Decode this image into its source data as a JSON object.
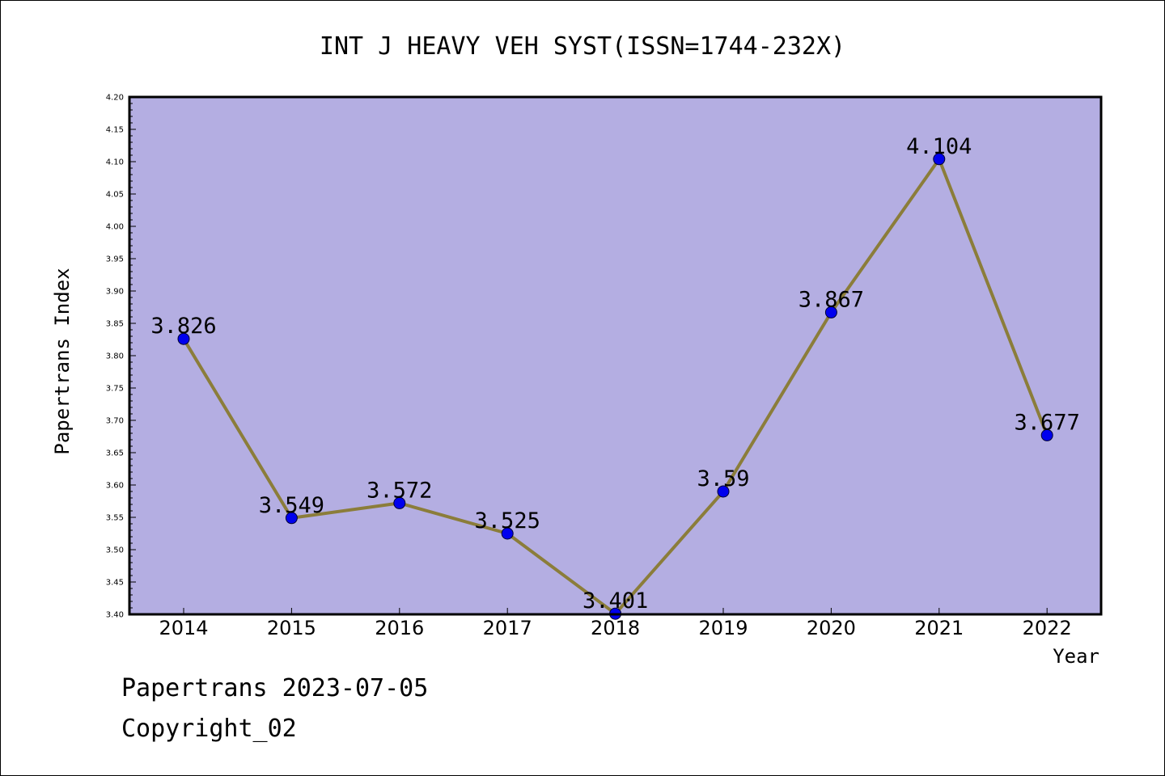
{
  "chart_data": {
    "type": "line",
    "title": "INT J HEAVY VEH SYST(ISSN=1744-232X)",
    "xlabel": "Year",
    "ylabel": "Papertrans Index",
    "categories": [
      "2014",
      "2015",
      "2016",
      "2017",
      "2018",
      "2019",
      "2020",
      "2021",
      "2022"
    ],
    "series": [
      {
        "values": [
          3.826,
          3.549,
          3.572,
          3.525,
          3.401,
          3.59,
          3.867,
          4.104,
          3.677
        ],
        "labels": [
          "3.826",
          "3.549",
          "3.572",
          "3.525",
          "3.401",
          "3.59",
          "3.867",
          "4.104",
          "3.677"
        ]
      }
    ],
    "ylim": [
      3.4,
      4.2
    ],
    "yticks": [
      "3.40",
      "3.45",
      "3.50",
      "3.55",
      "3.60",
      "3.65",
      "3.70",
      "3.75",
      "3.80",
      "3.85",
      "3.90",
      "3.95",
      "4.00",
      "4.05",
      "4.10",
      "4.15",
      "4.20"
    ],
    "grid": false,
    "legend": "none",
    "colors": {
      "plot_background": "#b4aee2",
      "line": "#8b7d3a",
      "marker": "#0000ee"
    }
  },
  "footer": {
    "line1": "Papertrans 2023-07-05",
    "line2": "Copyright_02"
  }
}
